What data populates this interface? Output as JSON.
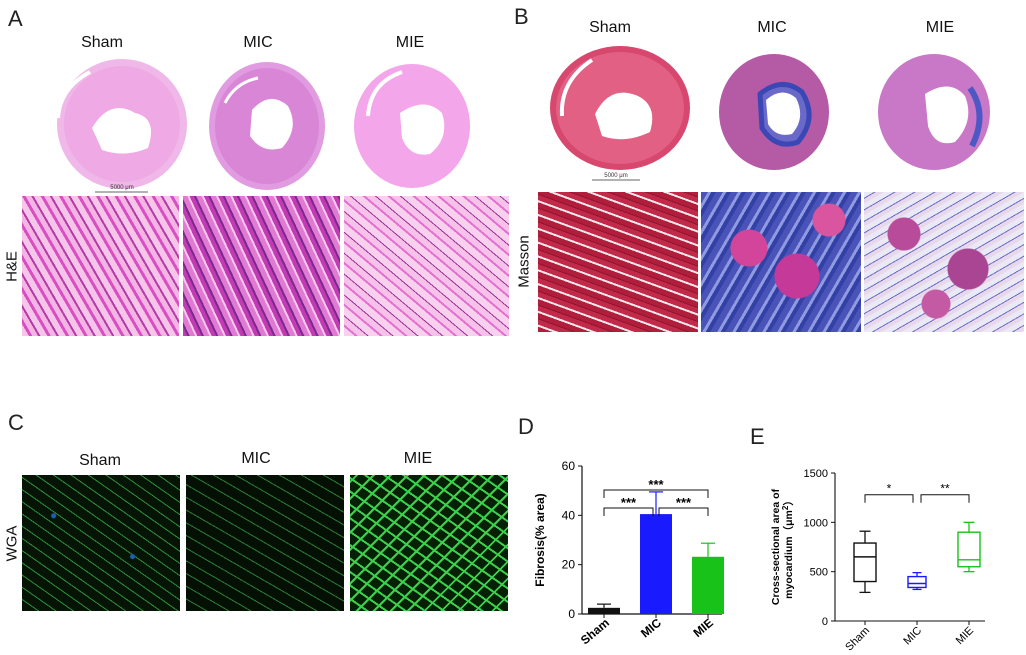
{
  "panel_a": {
    "label": "A",
    "columns": [
      "Sham",
      "MIC",
      "MIE"
    ],
    "row_label": "H&E",
    "scale_bar": "5000 μm"
  },
  "panel_b": {
    "label": "B",
    "columns": [
      "Sham",
      "MIC",
      "MIE"
    ],
    "row_label": "Masson",
    "scale_bar": "5000 μm"
  },
  "panel_c": {
    "label": "C",
    "columns": [
      "Sham",
      "MIC",
      "MIE"
    ],
    "row_label": "WGA"
  },
  "panel_d": {
    "label": "D"
  },
  "panel_e": {
    "label": "E"
  },
  "colors": {
    "sham": "#111111",
    "mic": "#1a1aff",
    "mie": "#19c219"
  },
  "chart_data": [
    {
      "type": "bar",
      "panel": "D",
      "categories": [
        "Sham",
        "MIC",
        "MIE"
      ],
      "values": [
        2.5,
        40.5,
        23.2
      ],
      "errors": [
        1.5,
        9.0,
        5.5
      ],
      "ylabel": "Fibrosis(% area)",
      "ylim": [
        0,
        60
      ],
      "yticks": [
        0,
        20,
        40,
        60
      ],
      "significance": [
        {
          "from": "Sham",
          "to": "MIC",
          "label": "***"
        },
        {
          "from": "MIC",
          "to": "MIE",
          "label": "***"
        },
        {
          "from": "Sham",
          "to": "MIE",
          "label": "***"
        }
      ]
    },
    {
      "type": "box",
      "panel": "E",
      "categories": [
        "Sham",
        "MIC",
        "MIE"
      ],
      "boxes": [
        {
          "min": 290,
          "q1": 400,
          "median": 650,
          "q3": 790,
          "max": 910
        },
        {
          "min": 320,
          "q1": 340,
          "median": 380,
          "q3": 450,
          "max": 490
        },
        {
          "min": 500,
          "q1": 550,
          "median": 620,
          "q3": 900,
          "max": 1000
        }
      ],
      "ylabel": "Cross-sectional area of myocardium（μm²）",
      "ylabel_line1": "Cross-sectional area of",
      "ylabel_line2": "myocardium（μm",
      "ylabel_sup": "2",
      "ylabel_close": "）",
      "ylim": [
        0,
        1500
      ],
      "yticks": [
        0,
        500,
        1000,
        1500
      ],
      "significance": [
        {
          "from": "Sham",
          "to": "MIC",
          "label": "*"
        },
        {
          "from": "MIC",
          "to": "MIE",
          "label": "**"
        }
      ]
    }
  ]
}
